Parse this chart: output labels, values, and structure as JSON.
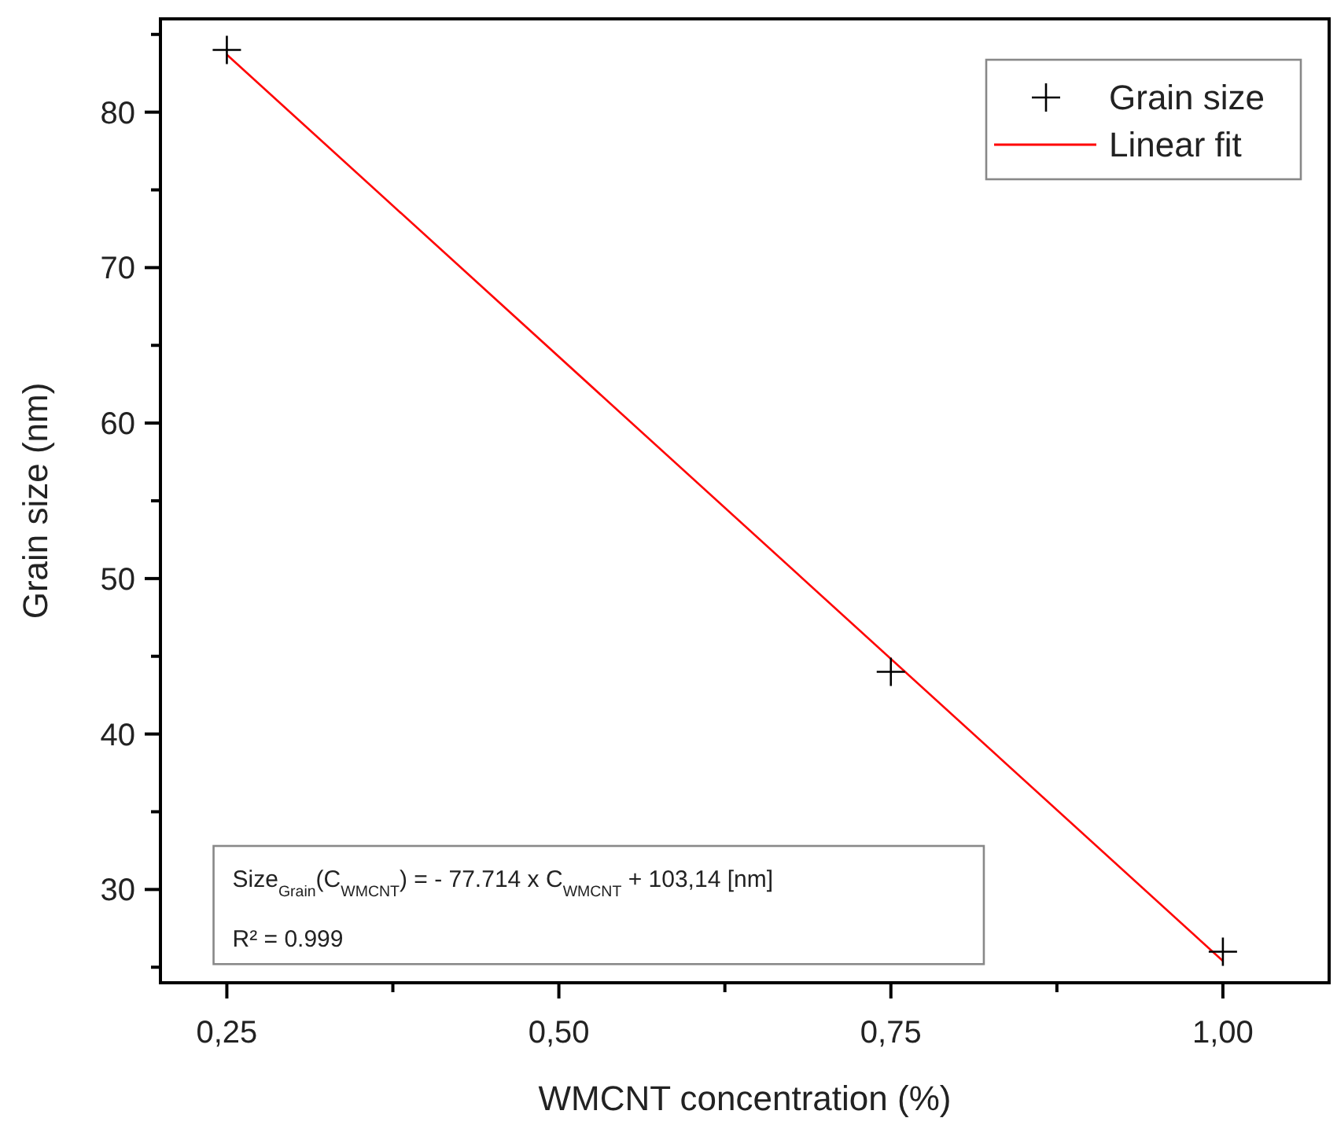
{
  "chart_data": {
    "type": "scatter",
    "xlabel": "WMCNT concentration (%)",
    "ylabel": "Grain size (nm)",
    "xlim": [
      0.2,
      1.08
    ],
    "ylim": [
      24,
      86
    ],
    "xticks": [
      {
        "value": 0.25,
        "label": "0,25"
      },
      {
        "value": 0.375,
        "label": null
      },
      {
        "value": 0.5,
        "label": "0,50"
      },
      {
        "value": 0.625,
        "label": null
      },
      {
        "value": 0.75,
        "label": "0,75"
      },
      {
        "value": 0.875,
        "label": null
      },
      {
        "value": 1,
        "label": "1,00"
      }
    ],
    "yticks": [
      {
        "value": 25,
        "label": null
      },
      30,
      {
        "value": 35,
        "label": null
      },
      40,
      {
        "value": 45,
        "label": null
      },
      50,
      {
        "value": 55,
        "label": null
      },
      60,
      {
        "value": 65,
        "label": null
      },
      70,
      {
        "value": 75,
        "label": null
      },
      80,
      {
        "value": 85,
        "label": null
      }
    ],
    "series": [
      {
        "name": "Grain size",
        "color": "#000000",
        "marker": "cross",
        "x": [
          0.25,
          0.75,
          1
        ],
        "values": [
          84,
          44,
          26
        ]
      },
      {
        "name": "Linear fit",
        "type": "line",
        "color": "#ff0000",
        "line_style": "solid",
        "marker": "none",
        "x": [
          0.25,
          1
        ],
        "values": [
          83.7,
          25.4
        ]
      }
    ],
    "annotations": [
      "Size$_{Grain}$(C$_{WMCNT}$) = - 77.714 x C$_{WMCNT}$ + 103,14 [nm]",
      "R² = 0.999"
    ],
    "legend": "top right",
    "grid": false
  }
}
